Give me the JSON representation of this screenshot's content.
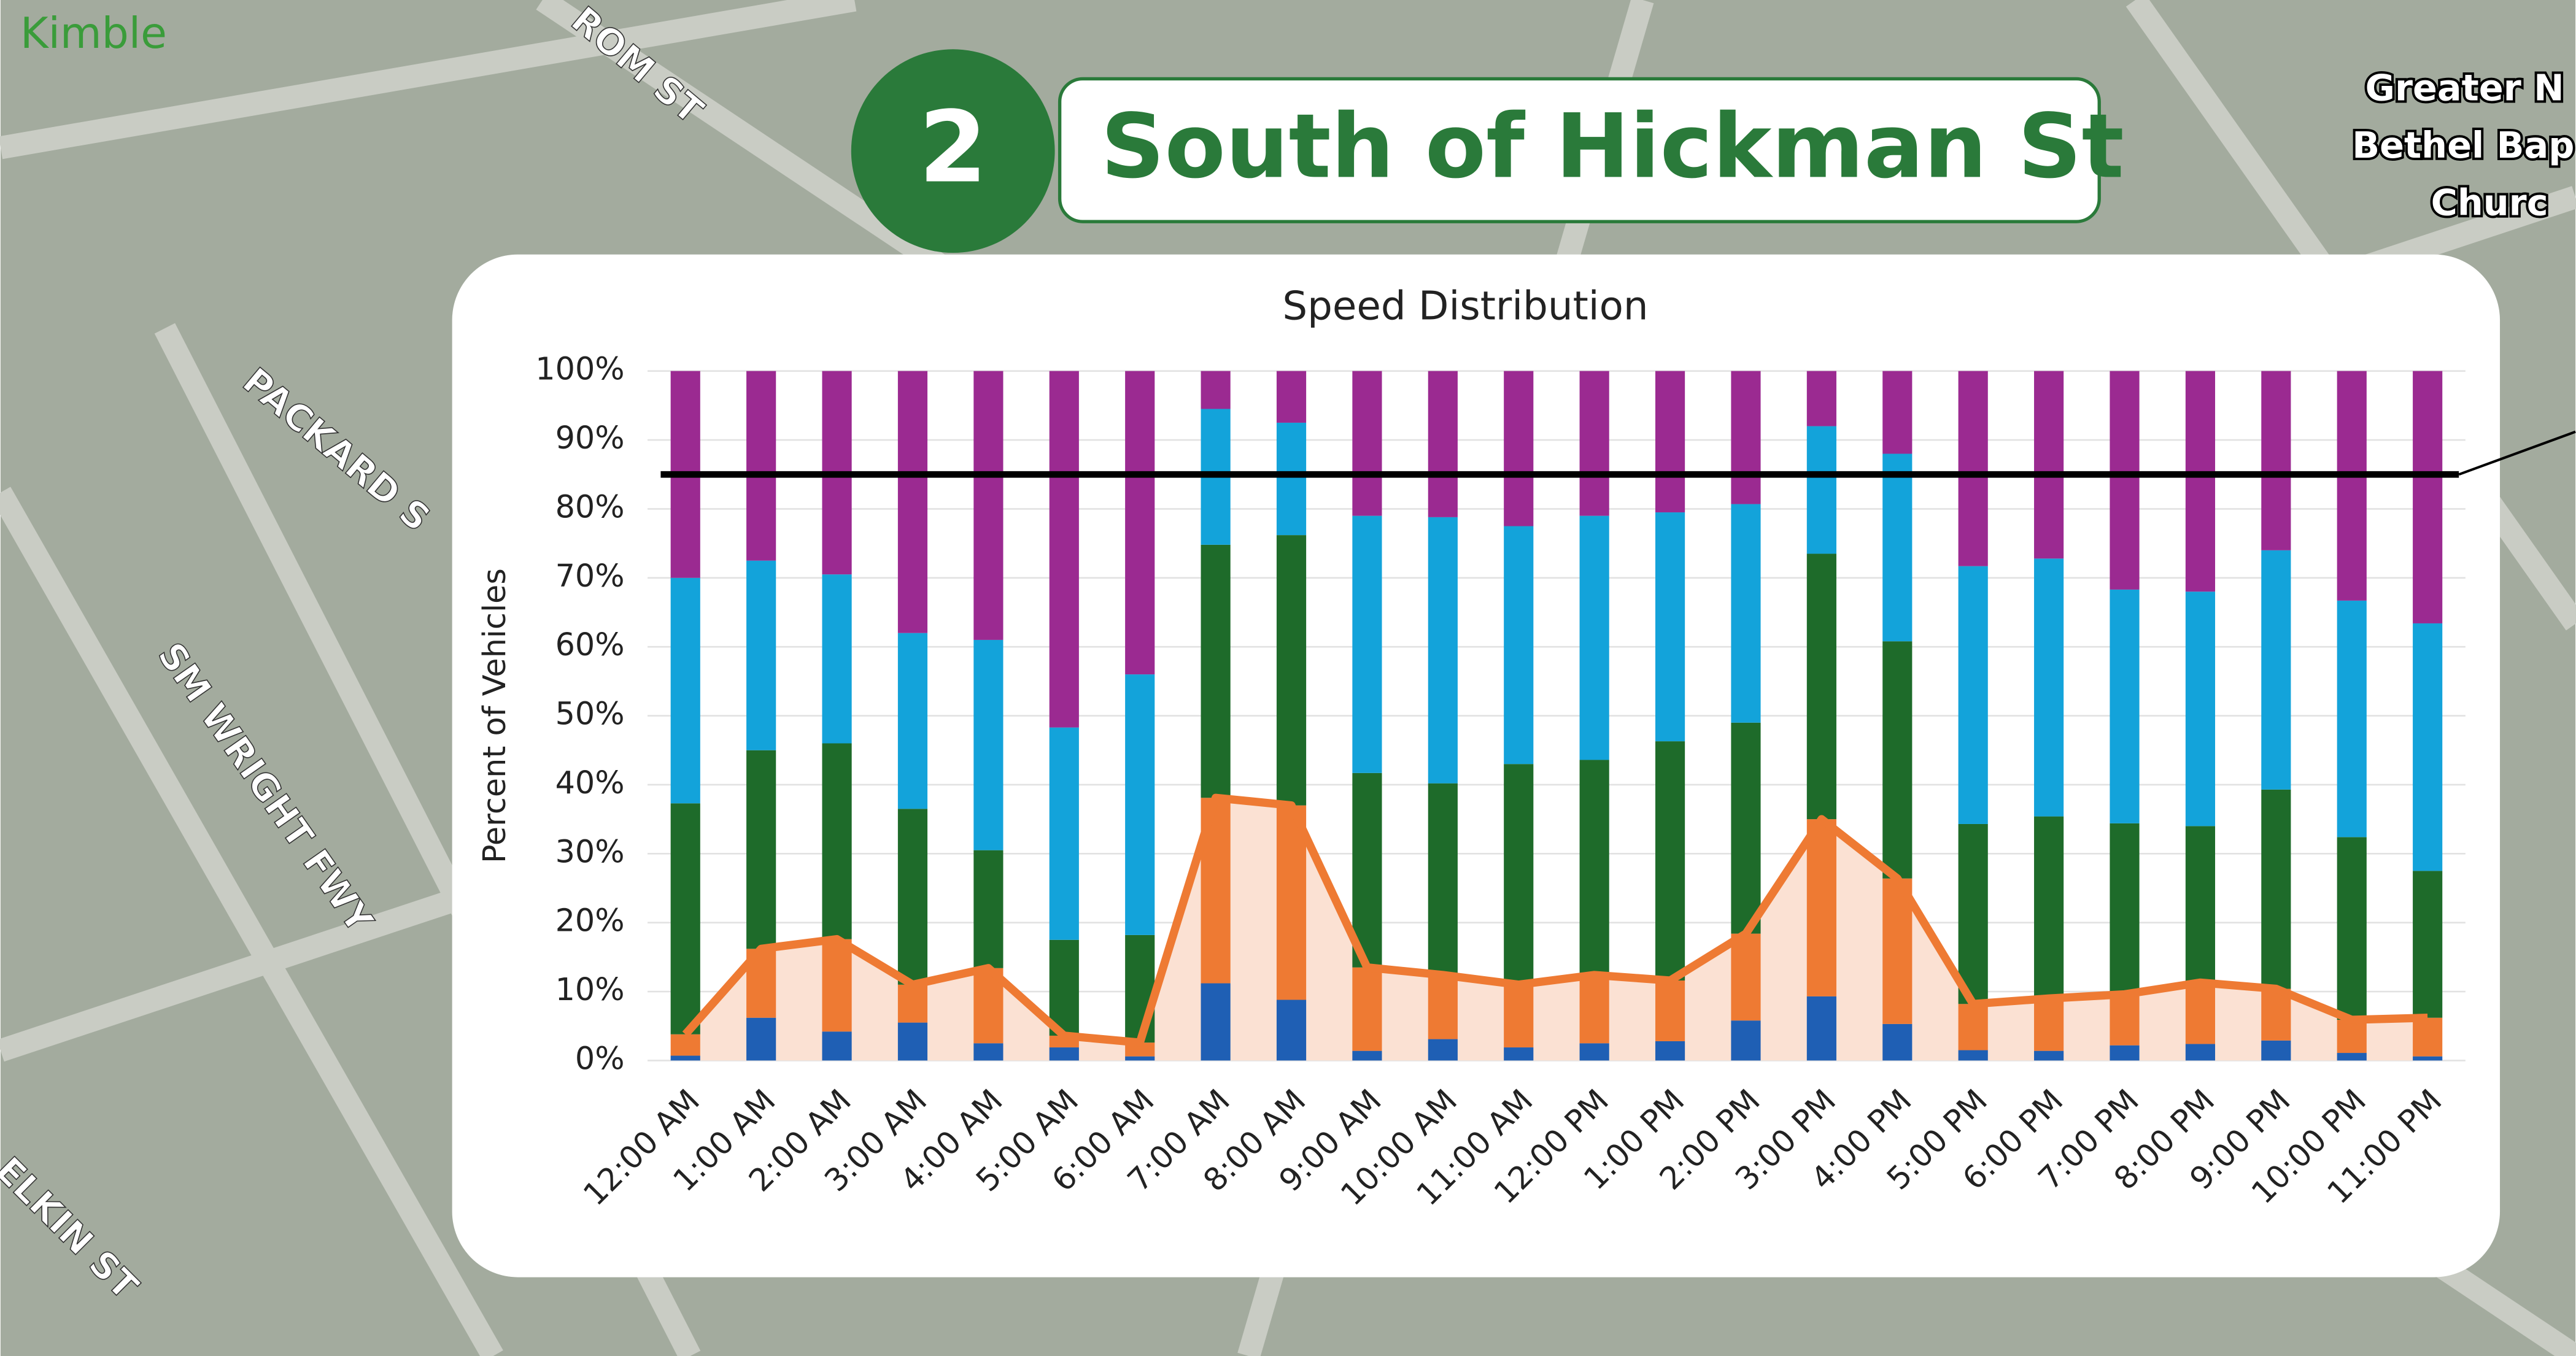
{
  "header": {
    "number": "2",
    "title": "South of Hickman St"
  },
  "map_labels": [
    "Kimble",
    "ROM ST",
    "PACKARD S",
    "SM WRIGHT FWY",
    "ELKIN ST",
    "Greater N",
    "Bethel Bap",
    "Churc"
  ],
  "chart_data": {
    "type": "bar",
    "stacked": true,
    "title": "Speed Distribution",
    "y_label": "Percent of Vehicles",
    "categories": [
      "12:00 AM",
      "1:00 AM",
      "2:00 AM",
      "3:00 AM",
      "4:00 AM",
      "5:00 AM",
      "6:00 AM",
      "7:00 AM",
      "8:00 AM",
      "9:00 AM",
      "10:00 AM",
      "11:00 AM",
      "12:00 PM",
      "1:00 PM",
      "2:00 PM",
      "3:00 PM",
      "4:00 PM",
      "5:00 PM",
      "6:00 PM",
      "7:00 PM",
      "8:00 PM",
      "9:00 PM",
      "10:00 PM",
      "11:00 PM"
    ],
    "series": [
      {
        "color": "#1f5fb4",
        "values": [
          0.7,
          6.2,
          4.2,
          5.5,
          2.5,
          1.9,
          0.6,
          11.2,
          8.8,
          1.4,
          3.1,
          1.9,
          2.5,
          2.8,
          5.8,
          9.3,
          5.3,
          1.5,
          1.4,
          2.2,
          2.4,
          2.9,
          1.1,
          0.6
        ]
      },
      {
        "color": "#ee7a33",
        "values": [
          3.1,
          10,
          13.4,
          5.5,
          10.9,
          1.7,
          2,
          26.9,
          28.2,
          12.1,
          9.3,
          9.1,
          9.9,
          8.8,
          12.6,
          25.7,
          21.1,
          6.7,
          7.6,
          7.4,
          8.9,
          7.5,
          4.8,
          5.6
        ]
      },
      {
        "color": "#1e6b2a",
        "values": [
          33.5,
          28.8,
          28.4,
          25.5,
          17.1,
          13.9,
          15.6,
          36.7,
          39.2,
          28.2,
          27.8,
          32,
          31.2,
          34.7,
          30.6,
          38.5,
          34.4,
          26.1,
          26.4,
          24.8,
          22.7,
          28.9,
          26.5,
          21.3
        ]
      },
      {
        "color": "#13a3da",
        "values": [
          32.7,
          27.5,
          24.5,
          25.5,
          30.5,
          30.8,
          37.8,
          19.7,
          16.3,
          37.3,
          38.6,
          34.5,
          35.4,
          33.2,
          31.7,
          18.5,
          27.2,
          37.4,
          37.4,
          33.9,
          34,
          34.7,
          34.3,
          35.9
        ]
      },
      {
        "color": "#9b2a91",
        "values": [
          30,
          27.5,
          29.5,
          38,
          39,
          51.7,
          44,
          5.5,
          7.5,
          21,
          21.2,
          22.5,
          21,
          20.5,
          19.3,
          8,
          12,
          28.3,
          27.2,
          31.7,
          32,
          26,
          33.3,
          36.6
        ]
      }
    ],
    "line": {
      "color": "#ee7a33",
      "fill": "#fbe1d3",
      "values": [
        3.8,
        16.2,
        17.6,
        11,
        13.4,
        3.6,
        2.6,
        38.1,
        37,
        13.5,
        12.4,
        11,
        12.4,
        11.6,
        18.4,
        35,
        26.4,
        8.2,
        9,
        9.6,
        11.3,
        10.4,
        5.9,
        6.2
      ]
    },
    "reference_line": {
      "value": 85,
      "color": "#000000"
    },
    "ylim": [
      0,
      100
    ],
    "yticks": [
      {
        "value": 0,
        "label": "0%"
      },
      {
        "value": 10,
        "label": "10%"
      },
      {
        "value": 20,
        "label": "20%"
      },
      {
        "value": 30,
        "label": "30%"
      },
      {
        "value": 40,
        "label": "40%"
      },
      {
        "value": 50,
        "label": "50%"
      },
      {
        "value": 60,
        "label": "60%"
      },
      {
        "value": 70,
        "label": "70%"
      },
      {
        "value": 80,
        "label": "80%"
      },
      {
        "value": 90,
        "label": "90%"
      },
      {
        "value": 100,
        "label": "100%"
      }
    ],
    "grid": true
  }
}
